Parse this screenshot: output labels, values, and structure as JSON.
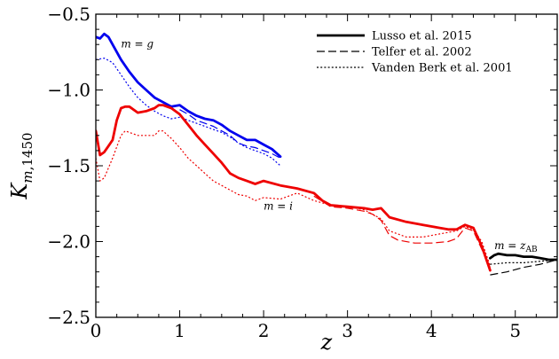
{
  "chart_data": {
    "type": "line",
    "xlabel": "z",
    "ylabel": "K_{m,1450}",
    "xlim": [
      0,
      5.5
    ],
    "ylim": [
      -2.5,
      -0.5
    ],
    "xticks": [
      0,
      1,
      2,
      3,
      4,
      5
    ],
    "yticks": [
      -2.5,
      -2.0,
      -1.5,
      -1.0,
      -0.5
    ],
    "x_tick_labels": [
      "0",
      "1",
      "2",
      "3",
      "4",
      "5"
    ],
    "y_tick_labels": [
      "−2.5",
      "−2.0",
      "−1.5",
      "−1.0",
      "−0.5"
    ],
    "grid": false,
    "legend_position": "top-right",
    "legend": [
      {
        "label": "Lusso et al. 2015",
        "style": "solid"
      },
      {
        "label": "Telfer et al. 2002",
        "style": "dashed"
      },
      {
        "label": "Vanden Berk et al. 2001",
        "style": "dotted"
      }
    ],
    "annotations": [
      {
        "text": "m = g",
        "x": 0.3,
        "y": -0.72
      },
      {
        "text": "m = i",
        "x": 2.0,
        "y": -1.79
      },
      {
        "text": "m = z_AB",
        "x": 4.75,
        "y": -2.05
      }
    ],
    "colors": {
      "g": "#0000ee",
      "i": "#ee0000",
      "z": "#000000"
    },
    "series": [
      {
        "band": "g",
        "style": "solid",
        "x": [
          0,
          0.05,
          0.1,
          0.15,
          0.2,
          0.3,
          0.4,
          0.5,
          0.6,
          0.7,
          0.8,
          0.9,
          1.0,
          1.1,
          1.2,
          1.3,
          1.4,
          1.5,
          1.6,
          1.7,
          1.8,
          1.9,
          2.0,
          2.1,
          2.2
        ],
        "y": [
          -0.65,
          -0.66,
          -0.63,
          -0.65,
          -0.7,
          -0.8,
          -0.88,
          -0.95,
          -1.0,
          -1.05,
          -1.08,
          -1.11,
          -1.1,
          -1.14,
          -1.17,
          -1.19,
          -1.2,
          -1.23,
          -1.27,
          -1.3,
          -1.33,
          -1.33,
          -1.36,
          -1.39,
          -1.44
        ]
      },
      {
        "band": "g",
        "style": "dashed",
        "x": [
          1.0,
          1.1,
          1.2,
          1.3,
          1.4,
          1.5,
          1.6,
          1.7,
          1.8,
          1.9,
          2.0,
          2.1,
          2.2
        ],
        "y": [
          -1.13,
          -1.16,
          -1.2,
          -1.22,
          -1.24,
          -1.27,
          -1.3,
          -1.35,
          -1.37,
          -1.38,
          -1.4,
          -1.42,
          -1.45
        ]
      },
      {
        "band": "g",
        "style": "dotted",
        "x": [
          0,
          0.1,
          0.2,
          0.3,
          0.4,
          0.5,
          0.6,
          0.7,
          0.8,
          0.9,
          1.0,
          1.1,
          1.2,
          1.3,
          1.4,
          1.5,
          1.6,
          1.7,
          1.8,
          1.9,
          2.0,
          2.1,
          2.2
        ],
        "y": [
          -0.8,
          -0.79,
          -0.82,
          -0.9,
          -0.98,
          -1.05,
          -1.1,
          -1.14,
          -1.17,
          -1.19,
          -1.18,
          -1.2,
          -1.22,
          -1.24,
          -1.26,
          -1.28,
          -1.31,
          -1.35,
          -1.38,
          -1.4,
          -1.42,
          -1.45,
          -1.5
        ]
      },
      {
        "band": "i",
        "style": "solid",
        "x": [
          0,
          0.05,
          0.1,
          0.15,
          0.2,
          0.25,
          0.3,
          0.35,
          0.4,
          0.5,
          0.6,
          0.7,
          0.75,
          0.8,
          0.9,
          1.0,
          1.1,
          1.2,
          1.3,
          1.4,
          1.5,
          1.6,
          1.7,
          1.8,
          1.9,
          2.0,
          2.2,
          2.4,
          2.6,
          2.7,
          2.8,
          3.0,
          3.2,
          3.3,
          3.4,
          3.5,
          3.7,
          3.9,
          4.1,
          4.2,
          4.3,
          4.4,
          4.5,
          4.6,
          4.7
        ],
        "y": [
          -1.27,
          -1.43,
          -1.41,
          -1.37,
          -1.33,
          -1.2,
          -1.12,
          -1.11,
          -1.11,
          -1.15,
          -1.14,
          -1.12,
          -1.1,
          -1.1,
          -1.12,
          -1.16,
          -1.23,
          -1.3,
          -1.36,
          -1.42,
          -1.48,
          -1.55,
          -1.58,
          -1.6,
          -1.62,
          -1.6,
          -1.63,
          -1.65,
          -1.68,
          -1.73,
          -1.76,
          -1.77,
          -1.78,
          -1.79,
          -1.78,
          -1.84,
          -1.87,
          -1.89,
          -1.91,
          -1.92,
          -1.92,
          -1.89,
          -1.91,
          -2.03,
          -2.19
        ]
      },
      {
        "band": "i",
        "style": "dashed",
        "x": [
          2.6,
          2.8,
          3.0,
          3.2,
          3.3,
          3.4,
          3.5,
          3.6,
          3.8,
          4.0,
          4.2,
          4.3,
          4.4,
          4.5,
          4.6,
          4.7
        ],
        "y": [
          -1.7,
          -1.77,
          -1.78,
          -1.8,
          -1.82,
          -1.86,
          -1.96,
          -1.99,
          -2.01,
          -2.01,
          -2.0,
          -1.98,
          -1.91,
          -1.93,
          -2.05,
          -2.17
        ]
      },
      {
        "band": "i",
        "style": "dotted",
        "x": [
          0,
          0.05,
          0.1,
          0.2,
          0.3,
          0.35,
          0.4,
          0.5,
          0.6,
          0.7,
          0.75,
          0.8,
          0.9,
          1.0,
          1.1,
          1.2,
          1.3,
          1.4,
          1.5,
          1.6,
          1.7,
          1.8,
          1.9,
          2.0,
          2.2,
          2.4,
          2.6,
          2.8,
          3.0,
          3.2,
          3.4,
          3.5,
          3.7,
          3.9,
          4.1,
          4.3,
          4.4,
          4.5,
          4.6,
          4.7
        ],
        "y": [
          -1.45,
          -1.6,
          -1.58,
          -1.45,
          -1.3,
          -1.27,
          -1.28,
          -1.3,
          -1.3,
          -1.3,
          -1.27,
          -1.27,
          -1.32,
          -1.38,
          -1.45,
          -1.5,
          -1.55,
          -1.6,
          -1.63,
          -1.66,
          -1.69,
          -1.7,
          -1.73,
          -1.71,
          -1.72,
          -1.68,
          -1.73,
          -1.76,
          -1.77,
          -1.79,
          -1.85,
          -1.93,
          -1.97,
          -1.97,
          -1.95,
          -1.93,
          -1.9,
          -1.92,
          -2.0,
          -2.16
        ]
      },
      {
        "band": "z",
        "style": "solid",
        "x": [
          4.7,
          4.75,
          4.8,
          4.9,
          5.0,
          5.1,
          5.2,
          5.3,
          5.4,
          5.5
        ],
        "y": [
          -2.11,
          -2.09,
          -2.08,
          -2.09,
          -2.09,
          -2.1,
          -2.1,
          -2.11,
          -2.12,
          -2.12
        ]
      },
      {
        "band": "z",
        "style": "dashed",
        "x": [
          4.7,
          4.9,
          5.1,
          5.3,
          5.5
        ],
        "y": [
          -2.22,
          -2.2,
          -2.17,
          -2.15,
          -2.12
        ]
      },
      {
        "band": "z",
        "style": "dotted",
        "x": [
          4.7,
          4.9,
          5.1,
          5.3,
          5.5
        ],
        "y": [
          -2.15,
          -2.14,
          -2.14,
          -2.13,
          -2.12
        ]
      }
    ]
  }
}
